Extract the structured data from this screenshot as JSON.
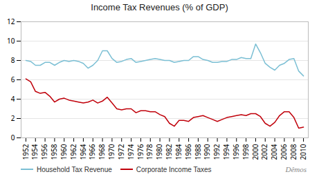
{
  "chart_data": {
    "type": "line",
    "title": "Income Tax Revenues (% of GDP)",
    "x": [
      1952,
      1953,
      1954,
      1955,
      1956,
      1957,
      1958,
      1959,
      1960,
      1961,
      1962,
      1963,
      1964,
      1965,
      1966,
      1967,
      1968,
      1969,
      1970,
      1971,
      1972,
      1973,
      1974,
      1975,
      1976,
      1977,
      1978,
      1979,
      1980,
      1981,
      1982,
      1983,
      1984,
      1985,
      1986,
      1987,
      1988,
      1989,
      1990,
      1991,
      1992,
      1993,
      1994,
      1995,
      1996,
      1997,
      1998,
      1999,
      2000,
      2001,
      2002,
      2003,
      2004,
      2005,
      2006,
      2007,
      2008,
      2009,
      2010
    ],
    "series": [
      {
        "name": "Household Tax Revenue",
        "color": "#7bbfd4",
        "values": [
          8.0,
          7.9,
          7.5,
          7.5,
          7.8,
          7.8,
          7.5,
          7.8,
          8.0,
          7.9,
          8.0,
          7.9,
          7.7,
          7.2,
          7.5,
          8.0,
          9.0,
          9.0,
          8.2,
          7.8,
          7.9,
          8.1,
          8.2,
          7.8,
          7.9,
          8.0,
          8.1,
          8.2,
          8.1,
          8.0,
          8.0,
          7.8,
          7.9,
          8.0,
          8.0,
          8.4,
          8.4,
          8.1,
          8.0,
          7.8,
          7.8,
          7.9,
          7.9,
          8.1,
          8.1,
          8.3,
          8.2,
          8.2,
          9.7,
          8.8,
          7.7,
          7.3,
          7.0,
          7.5,
          7.7,
          8.1,
          8.2,
          6.9,
          6.4
        ]
      },
      {
        "name": "Corporate Income Taxes",
        "color": "#c0000a",
        "values": [
          6.1,
          5.8,
          4.8,
          4.6,
          4.7,
          4.3,
          3.7,
          4.0,
          4.1,
          3.9,
          3.8,
          3.7,
          3.6,
          3.7,
          3.9,
          3.6,
          3.8,
          4.2,
          3.6,
          3.0,
          2.9,
          3.0,
          3.0,
          2.6,
          2.8,
          2.8,
          2.7,
          2.7,
          2.4,
          2.2,
          1.5,
          1.2,
          1.8,
          1.8,
          1.7,
          2.1,
          2.2,
          2.3,
          2.1,
          1.9,
          1.7,
          1.9,
          2.1,
          2.2,
          2.3,
          2.4,
          2.3,
          2.5,
          2.5,
          2.2,
          1.5,
          1.2,
          1.6,
          2.3,
          2.7,
          2.7,
          2.1,
          1.0,
          1.1
        ]
      }
    ],
    "xlim": [
      1951,
      2011
    ],
    "xticks": [
      1952,
      1954,
      1956,
      1958,
      1960,
      1962,
      1964,
      1966,
      1968,
      1970,
      1972,
      1974,
      1976,
      1978,
      1980,
      1982,
      1984,
      1986,
      1988,
      1990,
      1992,
      1994,
      1996,
      1998,
      2000,
      2002,
      2004,
      2006,
      2008,
      2010
    ],
    "ylim": [
      0,
      12
    ],
    "yticks": [
      0,
      2,
      4,
      6,
      8,
      10,
      12
    ],
    "grid": true,
    "legend": "lower left",
    "annotations": [
      "Dêmos"
    ]
  }
}
